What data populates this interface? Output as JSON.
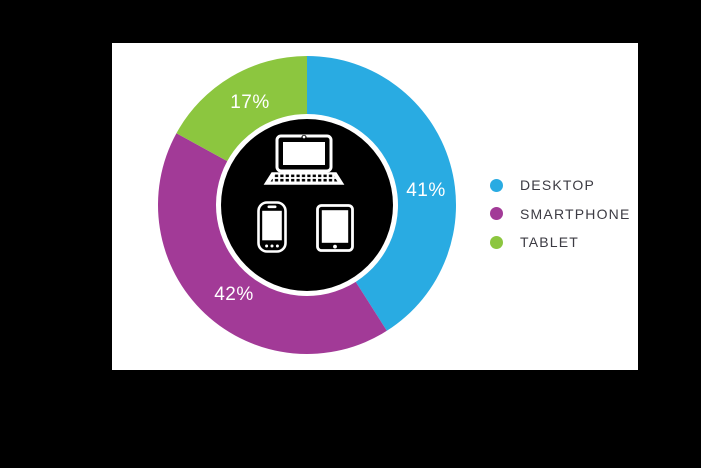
{
  "canvas": {
    "background_color": "#000000",
    "card_background_color": "#FFFFFF"
  },
  "chart_data": {
    "type": "pie",
    "donut": true,
    "title": "",
    "start_angle_deg": 0,
    "direction": "clockwise",
    "legend_position": "right",
    "center_background_color": "#000000",
    "center_icons": [
      "laptop-icon",
      "smartphone-icon",
      "tablet-icon"
    ],
    "slices": [
      {
        "label": "DESKTOP",
        "value": 41,
        "pct_label": "41%",
        "color": "#29ABE2"
      },
      {
        "label": "SMARTPHONE",
        "value": 42,
        "pct_label": "42%",
        "color": "#A23A97"
      },
      {
        "label": "TABLET",
        "value": 17,
        "pct_label": "17%",
        "color": "#8CC63F"
      }
    ],
    "value_label_color": "#FFFFFF",
    "legend_text_color": "#3C3B43"
  }
}
